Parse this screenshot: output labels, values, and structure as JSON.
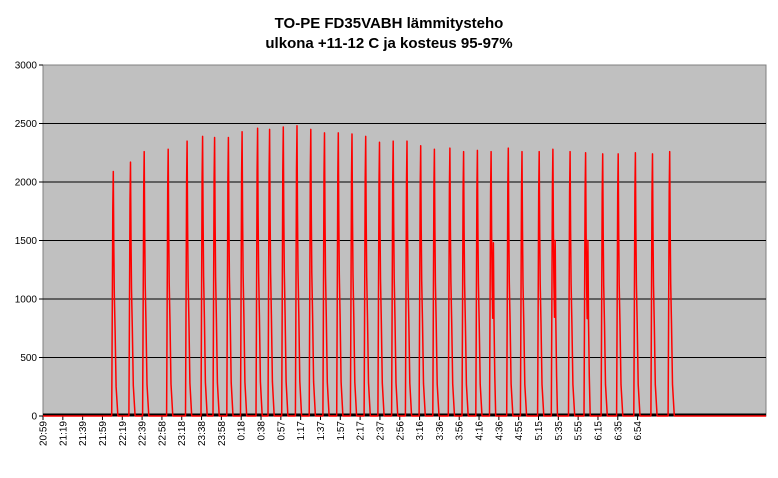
{
  "chart_data": {
    "type": "line",
    "title_lines": [
      "TO-PE FD35VABH lämmitysteho",
      "ulkona +11-12 C ja kosteus 95-97%"
    ],
    "xlabel": "",
    "ylabel": "",
    "ylim": [
      0,
      3000
    ],
    "yticks": [
      0,
      500,
      1000,
      1500,
      2000,
      2500,
      3000
    ],
    "grid": true,
    "legend": "none",
    "x_tick_labels": [
      "20:59",
      "21:19",
      "21:39",
      "21:59",
      "22:19",
      "22:39",
      "22:58",
      "23:18",
      "23:38",
      "23:58",
      "0:18",
      "0:38",
      "0:57",
      "1:17",
      "1:37",
      "1:57",
      "2:17",
      "2:37",
      "2:56",
      "3:16",
      "3:36",
      "3:56",
      "4:16",
      "4:36",
      "4:55",
      "5:15",
      "5:35",
      "5:55",
      "6:15",
      "6:35",
      "6:54"
    ],
    "colors": {
      "line": "#ff0000",
      "baseline": "#000000",
      "plot_bg": "#c0c0c0",
      "grid": "#000000"
    },
    "series": [
      {
        "baseline_value": 0,
        "pulse_peaks": [
          2090,
          2170,
          2260,
          2280,
          2350,
          2390,
          2380,
          2380,
          2430,
          2460,
          2450,
          2470,
          2480,
          2450,
          2420,
          2420,
          2410,
          2390,
          2340,
          2350,
          2350,
          2310,
          2280,
          2290,
          2260,
          2270,
          2260,
          2290,
          2260,
          2260,
          2280,
          2260,
          2250,
          2240,
          2240,
          2250,
          2240,
          2260
        ],
        "pulse_secondary": [
          0,
          0,
          0,
          0,
          0,
          0,
          0,
          0,
          0,
          0,
          0,
          0,
          0,
          0,
          0,
          0,
          0,
          0,
          0,
          0,
          0,
          0,
          0,
          0,
          0,
          0,
          1480,
          0,
          0,
          0,
          1500,
          0,
          1500,
          0,
          0,
          0,
          0,
          0
        ],
        "pulse_start_minute": [
          40,
          50,
          58,
          72,
          83,
          92,
          99,
          107,
          115,
          124,
          131,
          139,
          147,
          155,
          163,
          171,
          179,
          187,
          195,
          203,
          211,
          219,
          227,
          236,
          244,
          252,
          260,
          270,
          278,
          288,
          296,
          306,
          315,
          325,
          334,
          344,
          354,
          364
        ],
        "x_range_minutes": [
          0,
          421
        ]
      }
    ]
  }
}
